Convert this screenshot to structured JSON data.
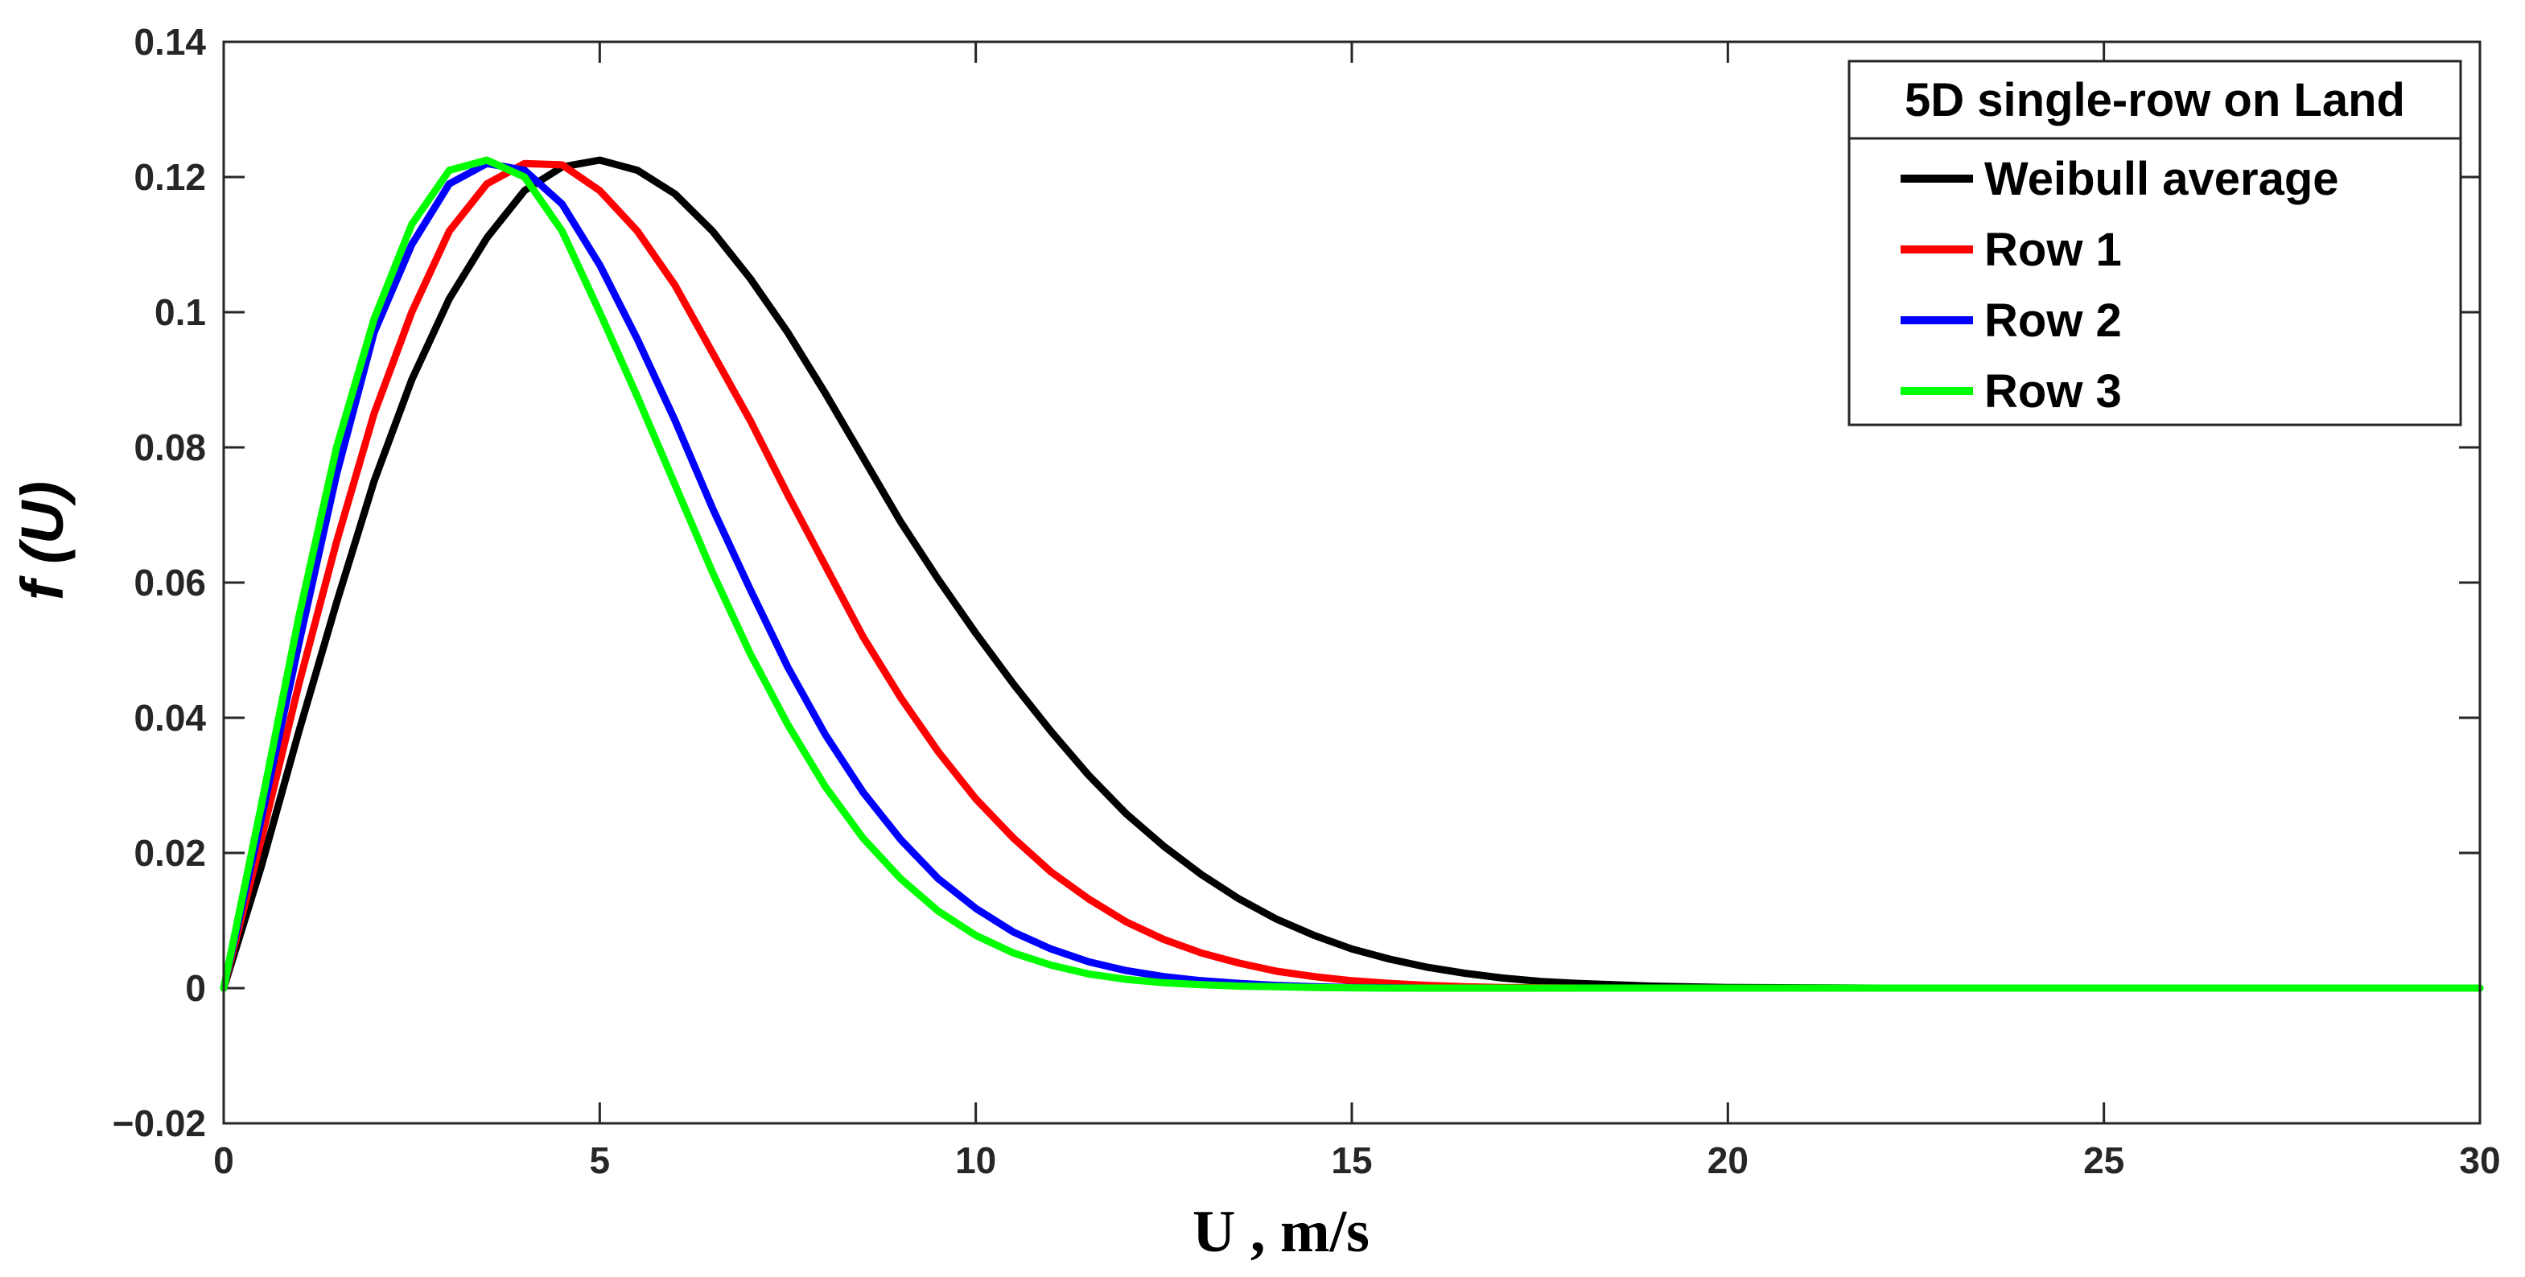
{
  "chart_data": {
    "type": "line",
    "xlabel": "U , m/s",
    "ylabel": "f (U)",
    "xlim": [
      0,
      30
    ],
    "ylim": [
      -0.02,
      0.14
    ],
    "xticks": [
      0,
      5,
      10,
      15,
      20,
      25,
      30
    ],
    "yticks": [
      -0.02,
      0,
      0.02,
      0.04,
      0.06,
      0.08,
      0.1,
      0.12,
      0.14
    ],
    "xtick_labels": [
      "0",
      "5",
      "10",
      "15",
      "20",
      "25",
      "30"
    ],
    "ytick_labels": [
      "−0.02",
      "0",
      "0.02",
      "0.04",
      "0.06",
      "0.08",
      "0.1",
      "0.12",
      "0.14"
    ],
    "grid": false,
    "legend": {
      "title": "5D single-row on Land",
      "placement": "top-right"
    },
    "x": [
      0,
      0.5,
      1,
      1.5,
      2,
      2.5,
      3,
      3.5,
      4,
      4.5,
      5,
      5.5,
      6,
      6.5,
      7,
      7.5,
      8,
      8.5,
      9,
      9.5,
      10,
      10.5,
      11,
      11.5,
      12,
      12.5,
      13,
      13.5,
      14,
      14.5,
      15,
      15.5,
      16,
      16.5,
      17,
      17.5,
      18,
      19,
      20,
      21,
      22,
      23,
      24,
      25,
      26,
      27,
      28,
      29,
      30
    ],
    "series": [
      {
        "name": "Weibull average",
        "color": "#000000",
        "values": [
          0.0,
          0.018,
          0.038,
          0.057,
          0.075,
          0.09,
          0.102,
          0.111,
          0.118,
          0.1215,
          0.1225,
          0.121,
          0.1175,
          0.112,
          0.105,
          0.097,
          0.088,
          0.0785,
          0.069,
          0.0605,
          0.0525,
          0.045,
          0.038,
          0.0315,
          0.0258,
          0.021,
          0.0168,
          0.0132,
          0.0102,
          0.0078,
          0.0058,
          0.0043,
          0.0031,
          0.0022,
          0.0015,
          0.001,
          0.0007,
          0.0003,
          0.0001,
          5e-05,
          0,
          0,
          0,
          0,
          0,
          0,
          0,
          0,
          0
        ]
      },
      {
        "name": "Row 1",
        "color": "#ff0000",
        "values": [
          0.0,
          0.022,
          0.045,
          0.066,
          0.085,
          0.1,
          0.112,
          0.119,
          0.122,
          0.1218,
          0.118,
          0.112,
          0.104,
          0.094,
          0.084,
          0.073,
          0.0625,
          0.052,
          0.043,
          0.035,
          0.028,
          0.0222,
          0.0172,
          0.0132,
          0.0098,
          0.0072,
          0.0052,
          0.0037,
          0.0025,
          0.0017,
          0.0011,
          0.0007,
          0.0004,
          0.0002,
          0.0001,
          5e-05,
          0,
          0,
          0,
          0,
          0,
          0,
          0,
          0,
          0,
          0,
          0,
          0,
          0
        ]
      },
      {
        "name": "Row 2",
        "color": "#0000ff",
        "values": [
          0.0,
          0.025,
          0.051,
          0.076,
          0.097,
          0.11,
          0.119,
          0.122,
          0.121,
          0.116,
          0.107,
          0.096,
          0.084,
          0.071,
          0.059,
          0.0475,
          0.0375,
          0.029,
          0.022,
          0.0162,
          0.0118,
          0.0083,
          0.0058,
          0.0039,
          0.0026,
          0.0017,
          0.0011,
          0.0007,
          0.0004,
          0.0002,
          0.0001,
          5e-05,
          0,
          0,
          0,
          0,
          0,
          0,
          0,
          0,
          0,
          0,
          0,
          0,
          0,
          0,
          0,
          0,
          0
        ]
      },
      {
        "name": "Row 3",
        "color": "#00ff00",
        "values": [
          0.0,
          0.027,
          0.055,
          0.08,
          0.099,
          0.113,
          0.121,
          0.1225,
          0.12,
          0.112,
          0.1,
          0.0875,
          0.0745,
          0.0615,
          0.0495,
          0.039,
          0.0298,
          0.0222,
          0.0162,
          0.0114,
          0.0078,
          0.0052,
          0.0034,
          0.0021,
          0.0013,
          0.0008,
          0.0005,
          0.0003,
          0.0002,
          0.0001,
          5e-05,
          0,
          0,
          0,
          0,
          0,
          0,
          0,
          0,
          0,
          0,
          0,
          0,
          0,
          0,
          0,
          0,
          0,
          0
        ]
      }
    ]
  }
}
